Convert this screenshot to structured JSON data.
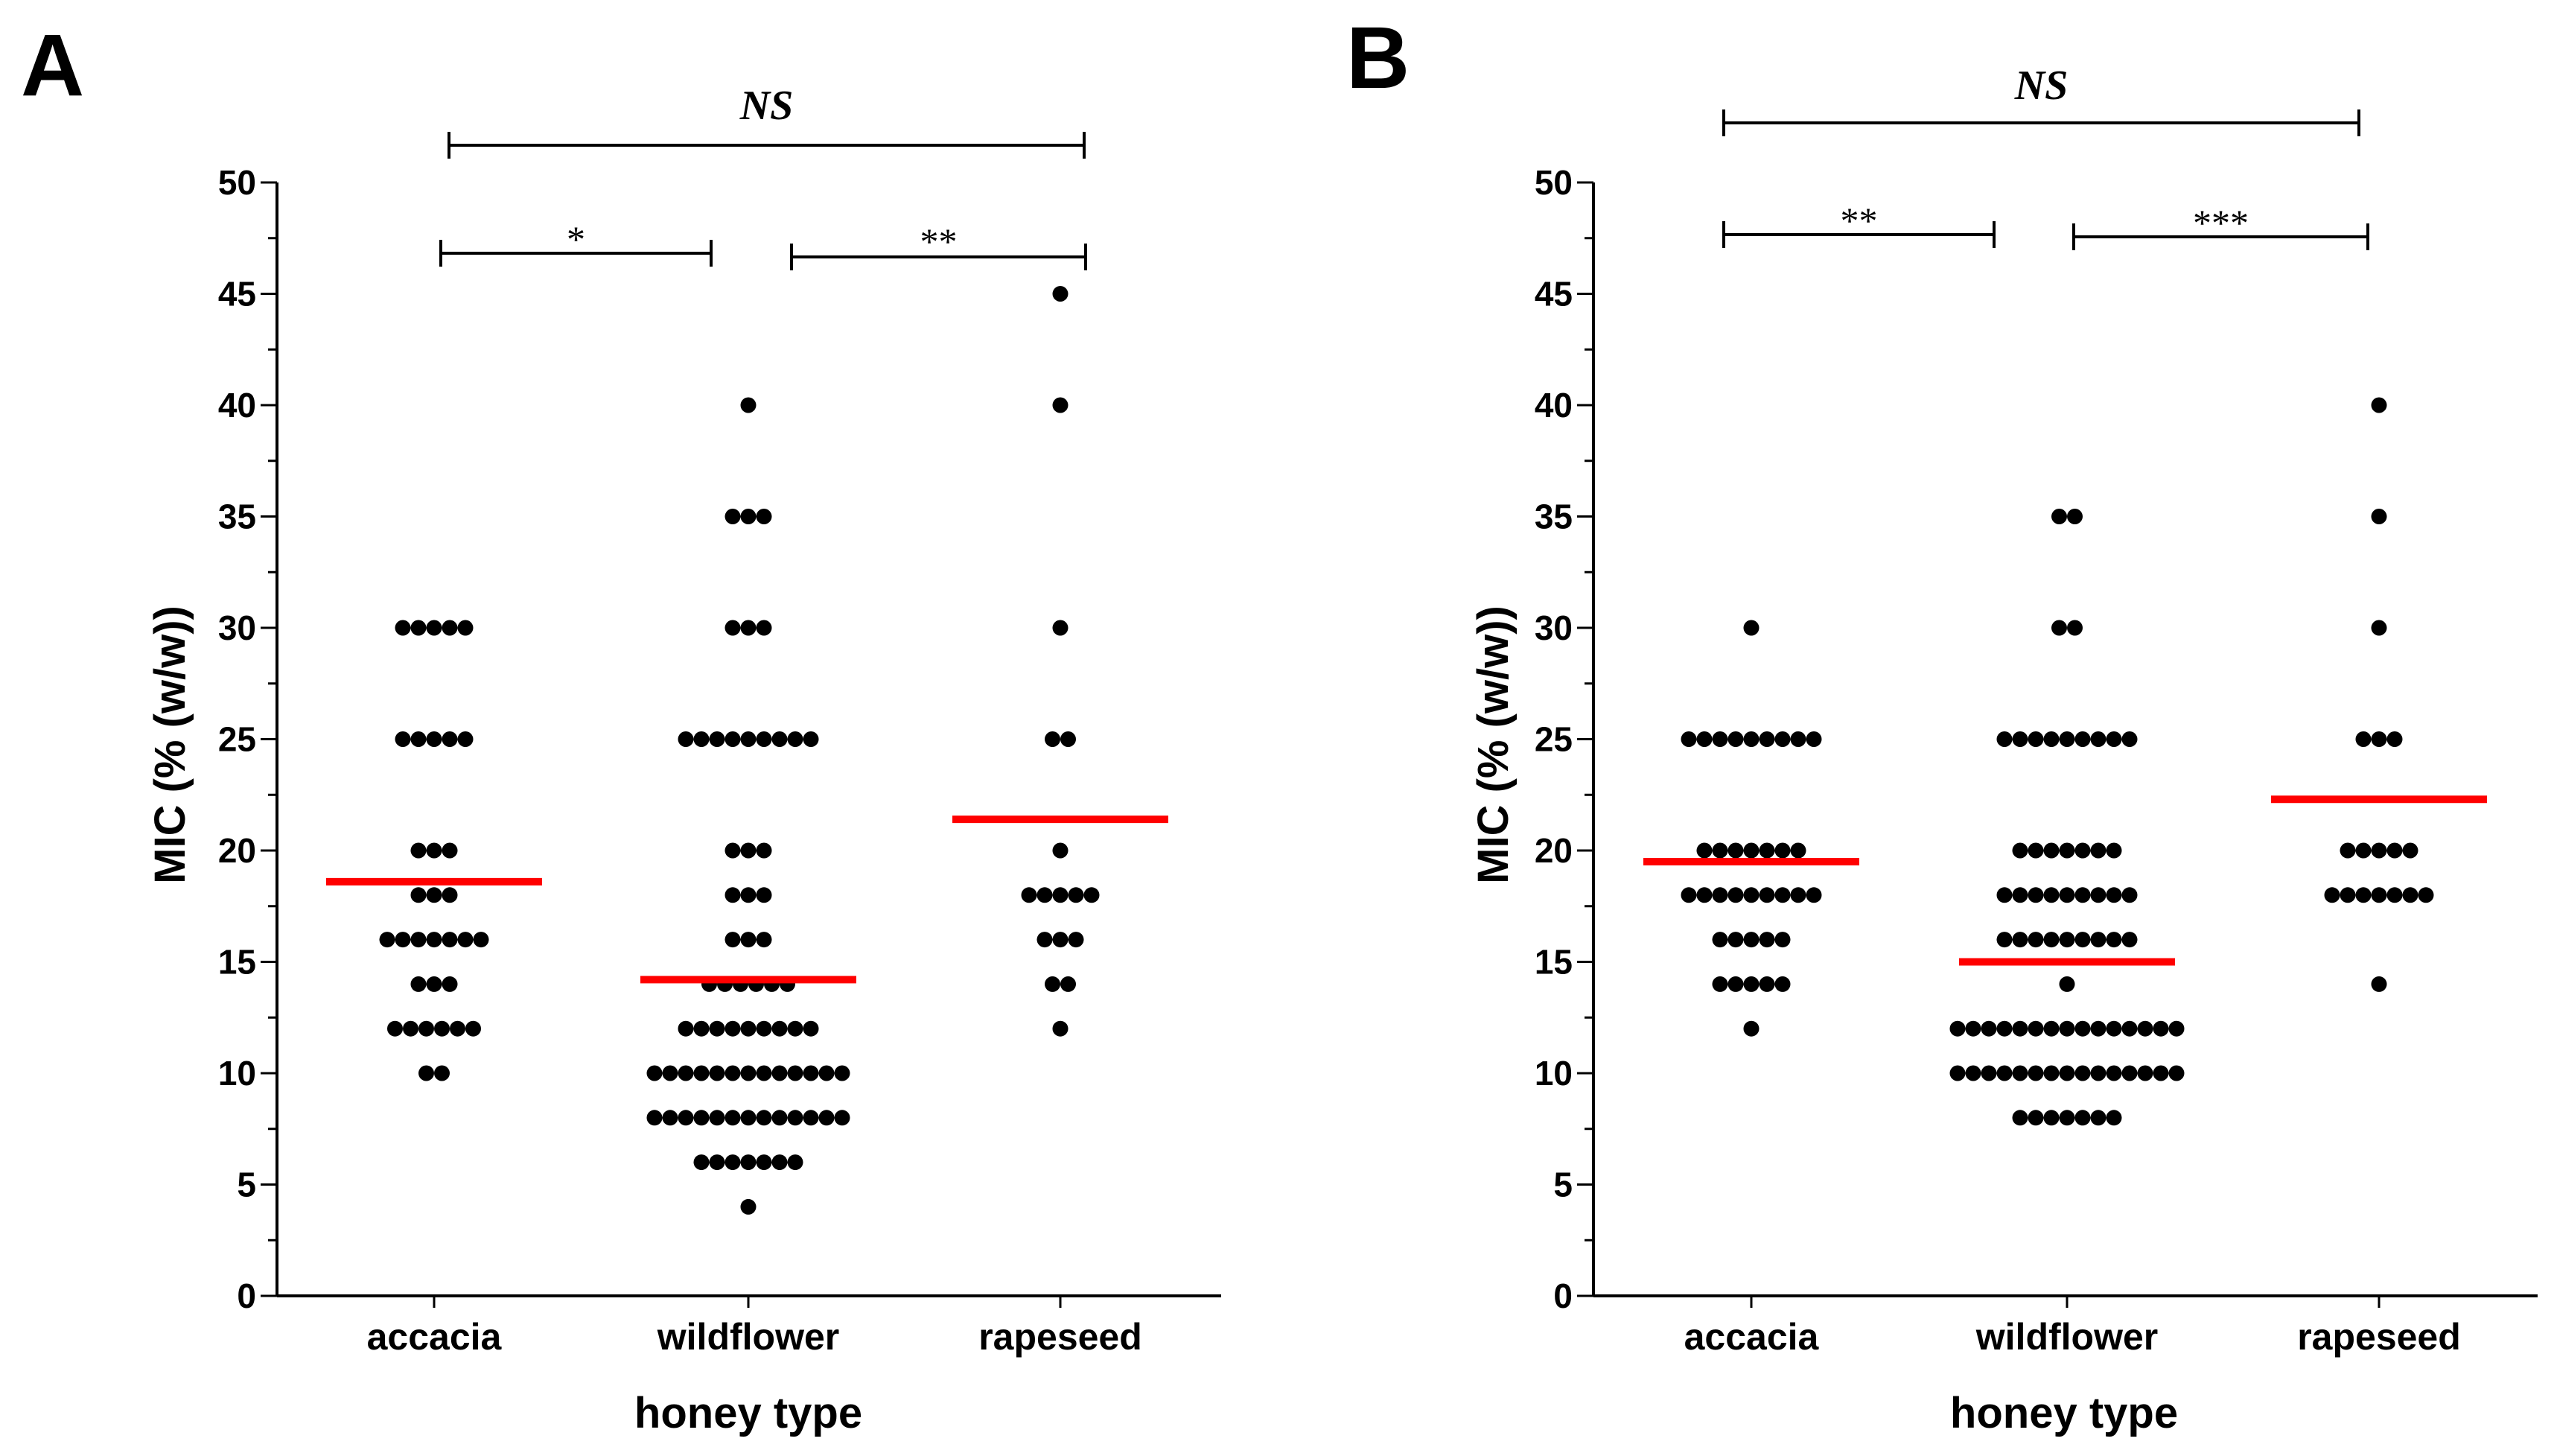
{
  "chart_data": [
    {
      "type": "scatter",
      "panel": "A",
      "categories": [
        "accacia",
        "wildflower",
        "rapeseed"
      ],
      "xlabel": "honey type",
      "ylabel": "MIC (% (w/w))",
      "ylim": [
        0,
        50
      ],
      "yticks": [
        0,
        5,
        10,
        15,
        20,
        25,
        30,
        35,
        40,
        45,
        50
      ],
      "points": [
        {
          "x": "accacia",
          "y": 30,
          "count": 5
        },
        {
          "x": "accacia",
          "y": 25,
          "count": 5
        },
        {
          "x": "accacia",
          "y": 20,
          "count": 3
        },
        {
          "x": "accacia",
          "y": 18,
          "count": 3
        },
        {
          "x": "accacia",
          "y": 16,
          "count": 7
        },
        {
          "x": "accacia",
          "y": 14,
          "count": 3
        },
        {
          "x": "accacia",
          "y": 12,
          "count": 6
        },
        {
          "x": "accacia",
          "y": 10,
          "count": 2
        },
        {
          "x": "wildflower",
          "y": 40,
          "count": 1
        },
        {
          "x": "wildflower",
          "y": 35,
          "count": 3
        },
        {
          "x": "wildflower",
          "y": 30,
          "count": 3
        },
        {
          "x": "wildflower",
          "y": 25,
          "count": 9
        },
        {
          "x": "wildflower",
          "y": 20,
          "count": 3
        },
        {
          "x": "wildflower",
          "y": 18,
          "count": 3
        },
        {
          "x": "wildflower",
          "y": 16,
          "count": 3
        },
        {
          "x": "wildflower",
          "y": 14,
          "count": 6
        },
        {
          "x": "wildflower",
          "y": 12,
          "count": 9
        },
        {
          "x": "wildflower",
          "y": 10,
          "count": 13
        },
        {
          "x": "wildflower",
          "y": 8,
          "count": 13
        },
        {
          "x": "wildflower",
          "y": 6,
          "count": 7
        },
        {
          "x": "wildflower",
          "y": 4,
          "count": 1
        },
        {
          "x": "rapeseed",
          "y": 45,
          "count": 1
        },
        {
          "x": "rapeseed",
          "y": 40,
          "count": 1
        },
        {
          "x": "rapeseed",
          "y": 30,
          "count": 1
        },
        {
          "x": "rapeseed",
          "y": 25,
          "count": 2
        },
        {
          "x": "rapeseed",
          "y": 20,
          "count": 1
        },
        {
          "x": "rapeseed",
          "y": 18,
          "count": 5
        },
        {
          "x": "rapeseed",
          "y": 16,
          "count": 3
        },
        {
          "x": "rapeseed",
          "y": 14,
          "count": 2
        },
        {
          "x": "rapeseed",
          "y": 12,
          "count": 1
        }
      ],
      "medians": [
        {
          "x": "accacia",
          "y": 18.6
        },
        {
          "x": "wildflower",
          "y": 14.2
        },
        {
          "x": "rapeseed",
          "y": 21.4
        }
      ],
      "median_color": "#ff0000",
      "point_color": "#000000",
      "significance": [
        {
          "from": "accacia",
          "to": "rapeseed",
          "label": "NS"
        },
        {
          "from": "accacia",
          "to": "wildflower",
          "label": "*"
        },
        {
          "from": "wildflower",
          "to": "rapeseed",
          "label": "**"
        }
      ]
    },
    {
      "type": "scatter",
      "panel": "B",
      "categories": [
        "accacia",
        "wildflower",
        "rapeseed"
      ],
      "xlabel": "honey type",
      "ylabel": "MIC (% (w/w))",
      "ylim": [
        0,
        50
      ],
      "yticks": [
        0,
        5,
        10,
        15,
        20,
        25,
        30,
        35,
        40,
        45,
        50
      ],
      "points": [
        {
          "x": "accacia",
          "y": 30,
          "count": 1
        },
        {
          "x": "accacia",
          "y": 25,
          "count": 9
        },
        {
          "x": "accacia",
          "y": 20,
          "count": 7
        },
        {
          "x": "accacia",
          "y": 18,
          "count": 9
        },
        {
          "x": "accacia",
          "y": 16,
          "count": 5
        },
        {
          "x": "accacia",
          "y": 14,
          "count": 5
        },
        {
          "x": "accacia",
          "y": 12,
          "count": 1
        },
        {
          "x": "wildflower",
          "y": 35,
          "count": 2
        },
        {
          "x": "wildflower",
          "y": 30,
          "count": 2
        },
        {
          "x": "wildflower",
          "y": 25,
          "count": 9
        },
        {
          "x": "wildflower",
          "y": 20,
          "count": 7
        },
        {
          "x": "wildflower",
          "y": 18,
          "count": 9
        },
        {
          "x": "wildflower",
          "y": 16,
          "count": 9
        },
        {
          "x": "wildflower",
          "y": 14,
          "count": 1
        },
        {
          "x": "wildflower",
          "y": 12,
          "count": 15
        },
        {
          "x": "wildflower",
          "y": 10,
          "count": 15
        },
        {
          "x": "wildflower",
          "y": 8,
          "count": 7
        },
        {
          "x": "rapeseed",
          "y": 40,
          "count": 1
        },
        {
          "x": "rapeseed",
          "y": 35,
          "count": 1
        },
        {
          "x": "rapeseed",
          "y": 30,
          "count": 1
        },
        {
          "x": "rapeseed",
          "y": 25,
          "count": 3
        },
        {
          "x": "rapeseed",
          "y": 20,
          "count": 5
        },
        {
          "x": "rapeseed",
          "y": 18,
          "count": 7
        },
        {
          "x": "rapeseed",
          "y": 14,
          "count": 1
        }
      ],
      "medians": [
        {
          "x": "accacia",
          "y": 19.5
        },
        {
          "x": "wildflower",
          "y": 15.0
        },
        {
          "x": "rapeseed",
          "y": 22.3
        }
      ],
      "median_color": "#ff0000",
      "point_color": "#000000",
      "significance": [
        {
          "from": "accacia",
          "to": "rapeseed",
          "label": "NS"
        },
        {
          "from": "accacia",
          "to": "wildflower",
          "label": "**"
        },
        {
          "from": "wildflower",
          "to": "rapeseed",
          "label": "***"
        }
      ]
    }
  ]
}
